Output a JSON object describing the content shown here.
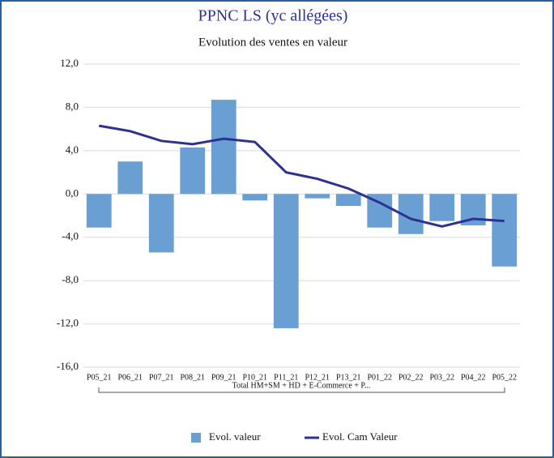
{
  "chart_data": {
    "type": "bar",
    "title": "PPNC LS (yc allégées)",
    "subtitle": "Evolution des ventes en valeur",
    "categories": [
      "P05_21",
      "P06_21",
      "P07_21",
      "P08_21",
      "P09_21",
      "P10_21",
      "P11_21",
      "P12_21",
      "P13_21",
      "P01_22",
      "P02_22",
      "P03_22",
      "P04_22",
      "P05_22"
    ],
    "group_label": "Total HM+SM + HD + E-Commerce + P...",
    "series": [
      {
        "name": "Evol.  valeur",
        "type": "bar",
        "color": "#6a9fd4",
        "values": [
          -3.1,
          3.0,
          -5.4,
          4.3,
          8.7,
          -0.6,
          -12.4,
          -0.4,
          -1.1,
          -3.1,
          -3.7,
          -2.5,
          -2.9,
          -6.7
        ]
      },
      {
        "name": "Evol. Cam Valeur",
        "type": "line",
        "color": "#2e3192",
        "values": [
          6.3,
          5.8,
          4.9,
          4.6,
          5.1,
          4.8,
          2.0,
          1.4,
          0.5,
          -0.8,
          -2.3,
          -3.0,
          -2.3,
          -2.5
        ]
      }
    ],
    "ylim": [
      -16,
      12
    ],
    "yticks": [
      {
        "value": -16,
        "label": "-16,0"
      },
      {
        "value": -12,
        "label": "-12,0"
      },
      {
        "value": -8,
        "label": "-8,0"
      },
      {
        "value": -4,
        "label": "-4,0"
      },
      {
        "value": 0,
        "label": "0,0"
      },
      {
        "value": 4,
        "label": "4,0"
      },
      {
        "value": 8,
        "label": "8,0"
      },
      {
        "value": 12,
        "label": "12,0"
      }
    ],
    "grid": true,
    "legend": "bottom"
  }
}
